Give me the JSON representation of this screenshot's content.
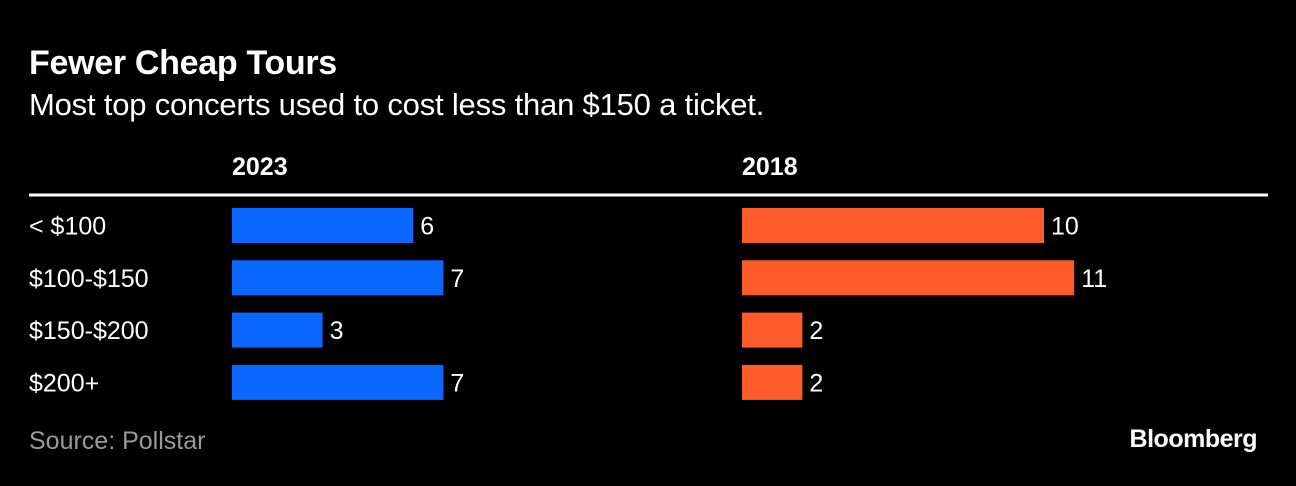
{
  "header": {
    "title": "Fewer Cheap Tours",
    "subtitle": "Most top concerts used to cost less than $150 a ticket."
  },
  "footer": {
    "source": "Source: Pollstar",
    "brand": "Bloomberg"
  },
  "colors": {
    "background": "#000000",
    "text": "#ffffff",
    "muted": "#9a9a9a",
    "series_2023": "#0a68ff",
    "series_2018": "#ff5a2a"
  },
  "chart_data": {
    "type": "bar",
    "orientation": "horizontal",
    "title": "Fewer Cheap Tours",
    "subtitle": "Most top concerts used to cost less than $150 a ticket.",
    "categories": [
      "< $100",
      "$100-$150",
      "$150-$200",
      "$200+"
    ],
    "series": [
      {
        "name": "2023",
        "values": [
          6,
          7,
          3,
          7
        ]
      },
      {
        "name": "2018",
        "values": [
          10,
          11,
          2,
          2
        ]
      }
    ],
    "xlim": [
      0,
      11
    ],
    "grid": false,
    "legend": "panel-headers",
    "source": "Source: Pollstar"
  }
}
